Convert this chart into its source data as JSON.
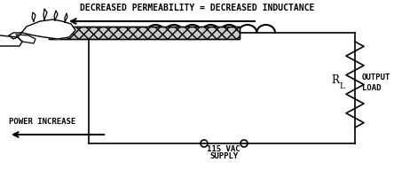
{
  "title": "DECREASED PERMEABILITY = DECREASED INDUCTANCE",
  "power_label": "POWER INCREASE",
  "supply_label": "115 VAC",
  "supply_label2": "SUPPLY",
  "output_label1": "OUTPUT",
  "output_label2": "LOAD",
  "rl_label": "R",
  "rl_sub": "L",
  "bg_color": "#ffffff",
  "fg_color": "#000000",
  "fig_w": 4.44,
  "fig_h": 1.92,
  "dpi": 100
}
